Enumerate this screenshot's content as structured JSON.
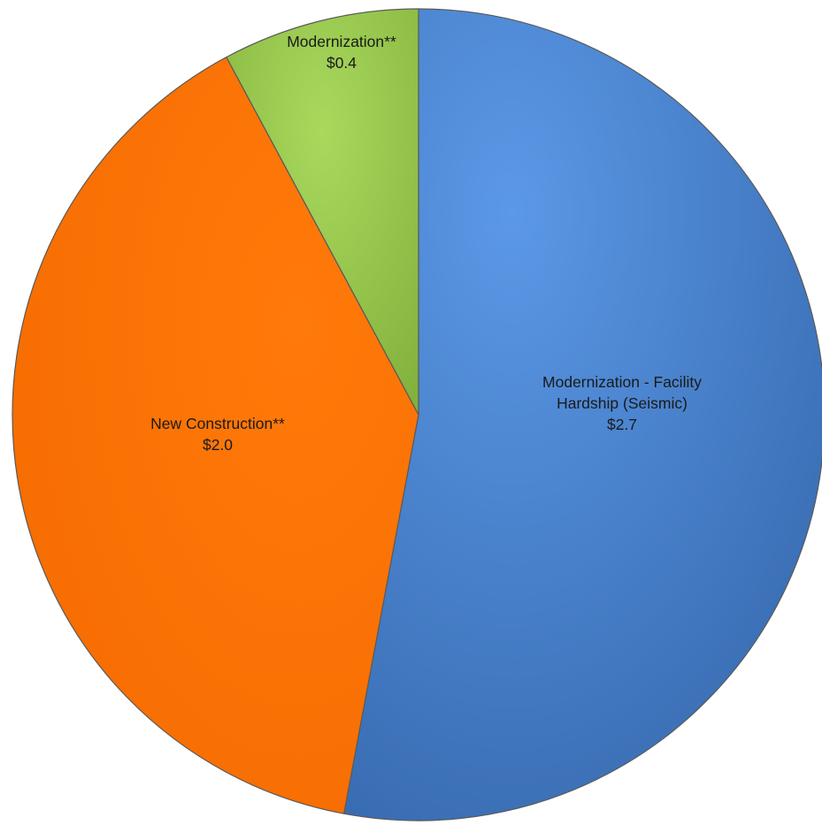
{
  "chart_data": {
    "type": "pie",
    "slices": [
      {
        "label_lines": [
          "Modernization - Facility",
          "Hardship (Seismic)"
        ],
        "value_label": "$2.7",
        "value": 2.7,
        "color": "#4a86d4"
      },
      {
        "label_lines": [
          "New Construction**"
        ],
        "value_label": "$2.0",
        "value": 2.0,
        "color": "#ff7100"
      },
      {
        "label_lines": [
          "Modernization**"
        ],
        "value_label": "$0.4",
        "value": 0.4,
        "color": "#9acd4e"
      }
    ],
    "start_angle": "12 o'clock",
    "direction": "clockwise",
    "legend": "none"
  }
}
